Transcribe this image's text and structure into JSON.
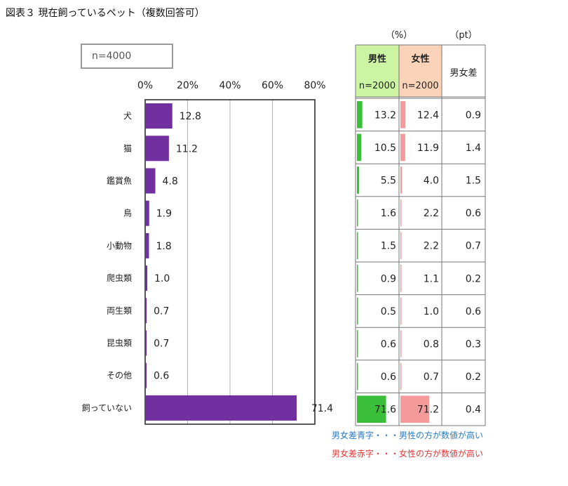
{
  "title": "図表３ 現在飼っているペット（複数回答可）",
  "sample_label": "n=4000",
  "table": {
    "unit_pct": "（%）",
    "unit_pt": "（pt）",
    "male_header": "男性",
    "female_header": "女性",
    "male_n": "n=2000",
    "female_n": "n=2000",
    "diff_header": "男女差",
    "colors": {
      "male": "#3bbf3b",
      "female": "#f59a9a",
      "male_bg": "#ccf5a3",
      "female_bg": "#fbd3b8",
      "diff_blue": "#2b7bc4",
      "diff_red": "#e03a3a"
    },
    "rows": [
      {
        "male": 13.2,
        "female": 12.4,
        "diff": "0.9",
        "diff_color": "blue"
      },
      {
        "male": 10.5,
        "female": 11.9,
        "diff": "1.4",
        "diff_color": "red"
      },
      {
        "male": 5.5,
        "female": 4.0,
        "diff": "1.5",
        "diff_color": "blue"
      },
      {
        "male": 1.6,
        "female": 2.2,
        "diff": "0.6",
        "diff_color": "red"
      },
      {
        "male": 1.5,
        "female": 2.2,
        "diff": "0.7",
        "diff_color": "red"
      },
      {
        "male": 0.9,
        "female": 1.1,
        "diff": "0.2",
        "diff_color": "red"
      },
      {
        "male": 0.5,
        "female": 1.0,
        "diff": "0.6",
        "diff_color": "red"
      },
      {
        "male": 0.6,
        "female": 0.8,
        "diff": "0.3",
        "diff_color": "red"
      },
      {
        "male": 0.6,
        "female": 0.7,
        "diff": "0.2",
        "diff_color": "red"
      },
      {
        "male": 71.6,
        "female": 71.2,
        "diff": "0.4",
        "diff_color": "blue"
      }
    ]
  },
  "notes": {
    "blue": "男女差青字・・・男性の方が数値が高い",
    "red": "男女差赤字・・・女性の方が数値が高い"
  },
  "chart_data": {
    "type": "bar",
    "orientation": "horizontal",
    "categories": [
      "犬",
      "猫",
      "鑑賞魚",
      "鳥",
      "小動物",
      "爬虫類",
      "両生類",
      "昆虫類",
      "その他",
      "飼っていない"
    ],
    "values": [
      12.8,
      11.2,
      4.8,
      1.9,
      1.8,
      1.0,
      0.7,
      0.7,
      0.6,
      71.4
    ],
    "value_labels": [
      "12.8",
      "11.2",
      "4.8",
      "1.9",
      "1.8",
      "1.0",
      "0.7",
      "0.7",
      "0.6",
      "71.4"
    ],
    "xlim": [
      0,
      80
    ],
    "x_ticks": [
      "0%",
      "20%",
      "40%",
      "60%",
      "80%"
    ],
    "grid": true,
    "bar_color": "#7030a0"
  }
}
